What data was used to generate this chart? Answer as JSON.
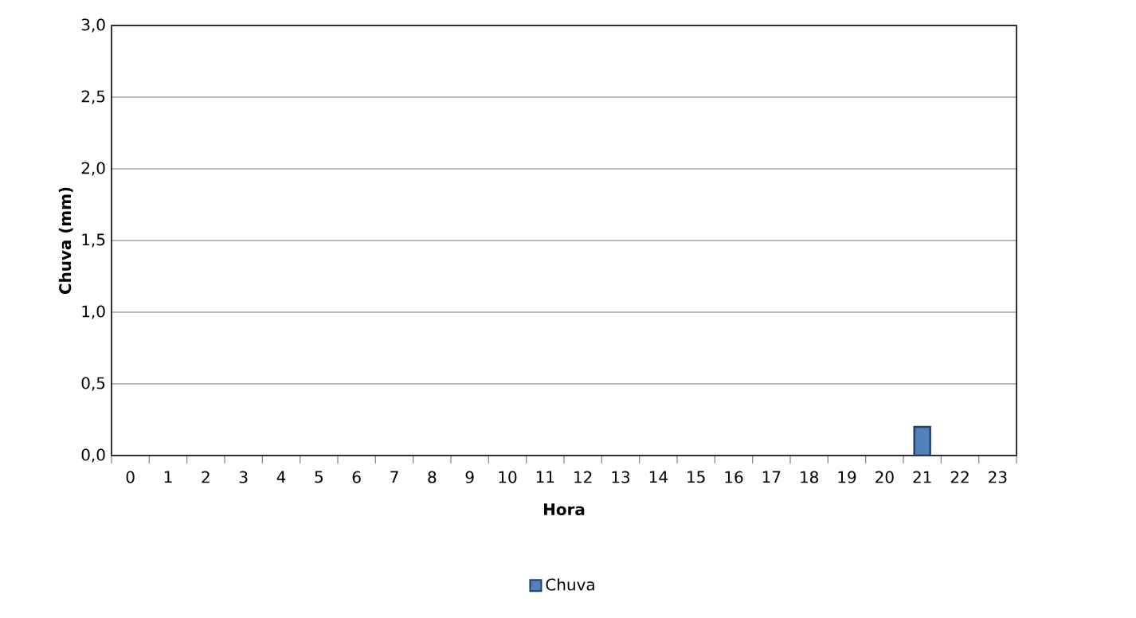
{
  "chart_data": {
    "type": "bar",
    "xlabel": "Hora",
    "ylabel": "Chuva (mm)",
    "categories": [
      "0",
      "1",
      "2",
      "3",
      "4",
      "5",
      "6",
      "7",
      "8",
      "9",
      "10",
      "11",
      "12",
      "13",
      "14",
      "15",
      "16",
      "17",
      "18",
      "19",
      "20",
      "21",
      "22",
      "23"
    ],
    "series": [
      {
        "name": "Chuva",
        "color": "#4f81bd",
        "values": [
          null,
          null,
          null,
          null,
          null,
          null,
          null,
          null,
          null,
          null,
          null,
          null,
          null,
          null,
          null,
          null,
          null,
          null,
          null,
          null,
          null,
          0.2,
          null,
          null
        ]
      }
    ],
    "ylim": [
      0,
      3
    ],
    "yticks": [
      {
        "value": 0,
        "label": "0,0"
      },
      {
        "value": 0.5,
        "label": "0,5"
      },
      {
        "value": 1,
        "label": "1,0"
      },
      {
        "value": 1.5,
        "label": "1,5"
      },
      {
        "value": 2,
        "label": "2,0"
      },
      {
        "value": 2.5,
        "label": "2,5"
      },
      {
        "value": 3,
        "label": "3,0"
      }
    ],
    "grid": "y",
    "legend": "bottom"
  }
}
